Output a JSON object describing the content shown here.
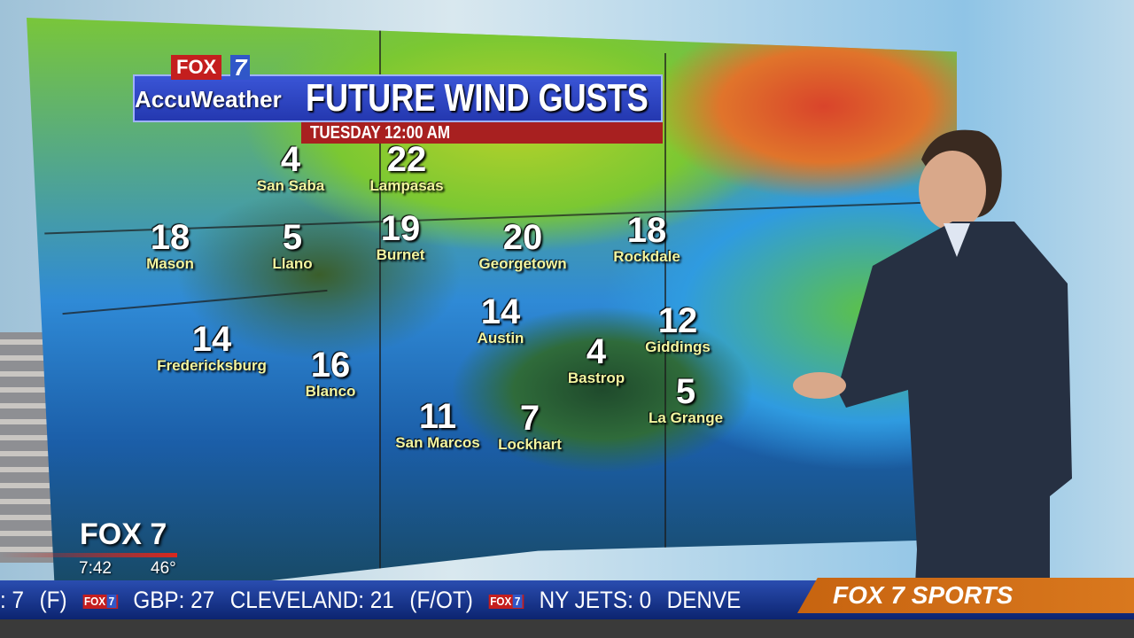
{
  "graphic": {
    "brand": "FOX",
    "brand_number": "7",
    "partner": "AccuWeather",
    "title": "FUTURE WIND GUSTS",
    "time": "TUESDAY 12:00 AM"
  },
  "cities": [
    {
      "name": "San Saba",
      "value": "4"
    },
    {
      "name": "Lampasas",
      "value": "22"
    },
    {
      "name": "Mason",
      "value": "18"
    },
    {
      "name": "Llano",
      "value": "5"
    },
    {
      "name": "Burnet",
      "value": "19"
    },
    {
      "name": "Georgetown",
      "value": "20"
    },
    {
      "name": "Rockdale",
      "value": "18"
    },
    {
      "name": "Austin",
      "value": "14"
    },
    {
      "name": "Giddings",
      "value": "12"
    },
    {
      "name": "Fredericksburg",
      "value": "14"
    },
    {
      "name": "Blanco",
      "value": "16"
    },
    {
      "name": "Bastrop",
      "value": "4"
    },
    {
      "name": "La Grange",
      "value": "5"
    },
    {
      "name": "San Marcos",
      "value": "11"
    },
    {
      "name": "Lockhart",
      "value": "7"
    }
  ],
  "bug": {
    "station": "FOX 7",
    "clock": "7:42",
    "temperature": "46°"
  },
  "ticker": {
    "items": [
      ": 7",
      "(F)",
      "GBP: 27",
      "CLEVELAND: 21",
      "(F/OT)",
      "NY JETS: 0",
      "DENVE"
    ],
    "mini_logo": "FOX",
    "mini_logo_num": "7"
  },
  "sports": {
    "label": "FOX 7 SPORTS"
  },
  "colors": {
    "ticker": "#1a3a9c",
    "sports": "#d06e18",
    "brand_red": "#c41e1e"
  }
}
